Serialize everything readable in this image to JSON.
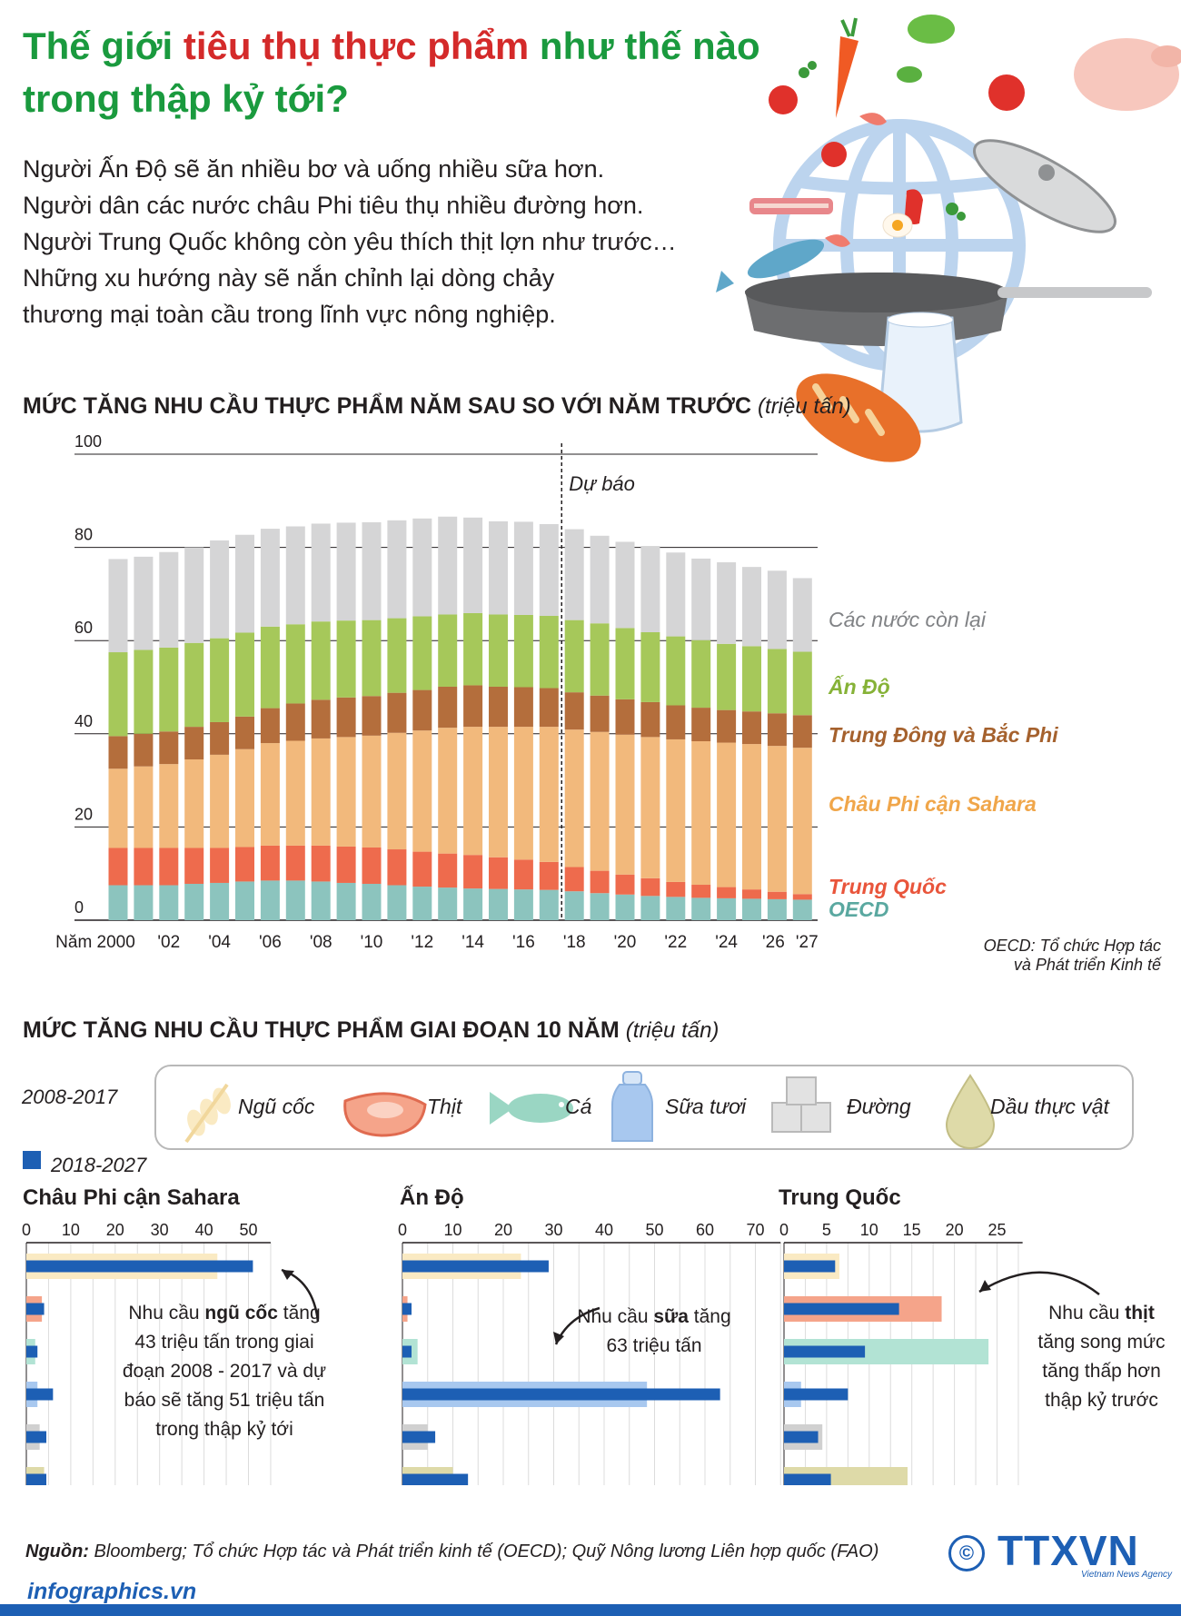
{
  "title": {
    "part1": "Thế giới ",
    "part2": "tiêu thụ thực phẩm",
    "part3": " như thế nào",
    "line2": "trong thập kỷ tới?"
  },
  "intro": [
    "Người Ấn Độ sẽ ăn nhiều bơ và uống nhiều sữa hơn.",
    "Người dân các nước châu Phi tiêu thụ nhiều đường hơn.",
    "Người Trung Quốc không còn yêu thích thịt lợn như trước…",
    "Những xu hướng này sẽ nắn chỉnh lại dòng chảy",
    "thương mại toàn cầu trong lĩnh vực nông nghiệp."
  ],
  "colors": {
    "green": "#1a9a3e",
    "red": "#d42a2a",
    "blue": "#1d5fb4"
  },
  "chart_data": [
    {
      "type": "bar",
      "stacked": true,
      "title": "MỨC TĂNG NHU CẦU THỰC PHẨM NĂM SAU SO VỚI NĂM TRƯỚC",
      "unit": "(triệu tấn)",
      "ylim": [
        0,
        100
      ],
      "yticks": [
        "0",
        "20",
        "40",
        "60",
        "80",
        "100"
      ],
      "forecast_label": "Dự báo",
      "forecast_from": "2018",
      "categories": [
        "2000",
        "2001",
        "2002",
        "2003",
        "2004",
        "2005",
        "2006",
        "2007",
        "2008",
        "2009",
        "2010",
        "2011",
        "2012",
        "2013",
        "2014",
        "2015",
        "2016",
        "2017",
        "2018",
        "2019",
        "2020",
        "2021",
        "2022",
        "2023",
        "2024",
        "2025",
        "2026",
        "2027"
      ],
      "xticks": [
        "Năm 2000",
        "'02",
        "'04",
        "'06",
        "'08",
        "'10",
        "'12",
        "'14",
        "'16",
        "'18",
        "'20",
        "'22",
        "'24",
        "'26",
        "'27"
      ],
      "series": [
        {
          "name": "OECD",
          "color": "#8cc4be",
          "values": [
            7.5,
            7.5,
            7.5,
            7.8,
            8,
            8.3,
            8.5,
            8.5,
            8.3,
            8,
            7.8,
            7.5,
            7.2,
            7,
            6.8,
            6.7,
            6.6,
            6.5,
            6.2,
            5.8,
            5.5,
            5.2,
            5,
            4.8,
            4.7,
            4.6,
            4.5,
            4.4
          ]
        },
        {
          "name": "Trung Quốc",
          "color": "#ee6b4d",
          "values": [
            8,
            8,
            8,
            7.7,
            7.5,
            7.4,
            7.5,
            7.5,
            7.7,
            7.8,
            7.8,
            7.7,
            7.5,
            7.3,
            7.2,
            6.8,
            6.4,
            6,
            5.2,
            4.8,
            4.3,
            3.8,
            3.2,
            2.8,
            2.4,
            2,
            1.6,
            1.2
          ]
        },
        {
          "name": "Châu Phi cận Sahara",
          "color": "#f2b97c",
          "values": [
            17,
            17.5,
            18,
            19,
            20,
            21,
            22,
            22.5,
            23,
            23.5,
            24,
            25,
            26,
            27,
            27.5,
            28,
            28.5,
            29,
            29.5,
            29.8,
            30,
            30.3,
            30.6,
            30.8,
            31,
            31.2,
            31.3,
            31.4
          ]
        },
        {
          "name": "Trung Đông và Bắc Phi",
          "color": "#b46e3c",
          "values": [
            7,
            7,
            7,
            7,
            7,
            7,
            7.5,
            8,
            8.3,
            8.5,
            8.5,
            8.6,
            8.7,
            8.8,
            8.9,
            8.6,
            8.5,
            8.3,
            8,
            7.8,
            7.6,
            7.5,
            7.3,
            7.2,
            7,
            7,
            7,
            7
          ]
        },
        {
          "name": "Ấn Độ",
          "color": "#a6c85a",
          "values": [
            18,
            18,
            18,
            18,
            18,
            18,
            17.5,
            17,
            16.8,
            16.5,
            16.3,
            16,
            15.8,
            15.5,
            15.5,
            15.5,
            15.5,
            15.5,
            15.5,
            15.5,
            15.3,
            15,
            14.8,
            14.5,
            14.2,
            14,
            13.8,
            13.6
          ]
        },
        {
          "name": "Các nước còn lại",
          "color": "#d5d5d6",
          "values": [
            20,
            20,
            20.5,
            20.5,
            21,
            21,
            21,
            21,
            21,
            21,
            21,
            21,
            21,
            21,
            20.5,
            20,
            20,
            19.7,
            19.5,
            18.8,
            18.5,
            18.5,
            18,
            17.5,
            17.5,
            17,
            16.8,
            15.8
          ]
        }
      ],
      "note_line1": "OECD: Tổ chức Hợp tác",
      "note_line2": "và Phát triển Kinh tế"
    },
    {
      "type": "bar",
      "orientation": "horizontal",
      "title": "MỨC TĂNG NHU CẦU THỰC PHẨM GIAI ĐOẠN 10 NĂM",
      "unit": "(triệu tấn)",
      "periods": [
        "2008-2017",
        "2018-2027"
      ],
      "categories": [
        "Ngũ cốc",
        "Thịt",
        "Cá",
        "Sữa tươi",
        "Đường",
        "Dầu thực vật"
      ],
      "category_colors": [
        "#faeac3",
        "#f5a48a",
        "#b2e3d4",
        "#a8c8ef",
        "#d0d0d0",
        "#dedaa8"
      ],
      "bar_color_2018_2027": "#1d5fb4",
      "panels": [
        {
          "name": "Châu Phi cận Sahara",
          "ticks": [
            "0",
            "10",
            "20",
            "30",
            "40",
            "50"
          ],
          "max": 55,
          "values_2008_2017": [
            43,
            3.5,
            2,
            2.5,
            3,
            4
          ],
          "values_2018_2027": [
            51,
            4,
            2.5,
            6,
            4.5,
            4.5
          ]
        },
        {
          "name": "Ấn Độ",
          "ticks": [
            "0",
            "10",
            "20",
            "30",
            "40",
            "50",
            "60",
            "70"
          ],
          "max": 75,
          "values_2008_2017": [
            23.5,
            1,
            3,
            48.5,
            5,
            10
          ],
          "values_2018_2027": [
            29,
            1.8,
            1.8,
            63,
            6.5,
            13
          ]
        },
        {
          "name": "Trung Quốc",
          "ticks": [
            "0",
            "5",
            "10",
            "15",
            "20",
            "25"
          ],
          "max": 28,
          "values_2008_2017": [
            6.5,
            18.5,
            24,
            2,
            4.5,
            14.5
          ],
          "values_2018_2027": [
            6,
            13.5,
            9.5,
            7.5,
            4,
            5.5
          ]
        }
      ],
      "annotations": [
        [
          "Nhu cầu ",
          "ngũ cốc",
          " tăng",
          "43 triệu tấn trong giai",
          "đoạn 2008 - 2017 và dự",
          "báo sẽ tăng 51 triệu tấn",
          "trong thập kỷ tới"
        ],
        [
          "Nhu cầu ",
          "sữa",
          " tăng",
          "63 triệu tấn"
        ],
        [
          "Nhu cầu ",
          "thịt",
          "",
          "tăng song mức",
          "tăng thấp hơn",
          "thập kỷ trước"
        ]
      ]
    }
  ],
  "footer": {
    "label": "Nguồn:",
    "text": " Bloomberg; Tổ chức Hợp tác và Phát triển kinh tế (OECD); Quỹ Nông lương Liên hợp quốc (FAO)",
    "copyright": "©",
    "brand": "TTXVN",
    "brand_sub": "Vietnam News Agency",
    "site": "infographics.vn"
  }
}
